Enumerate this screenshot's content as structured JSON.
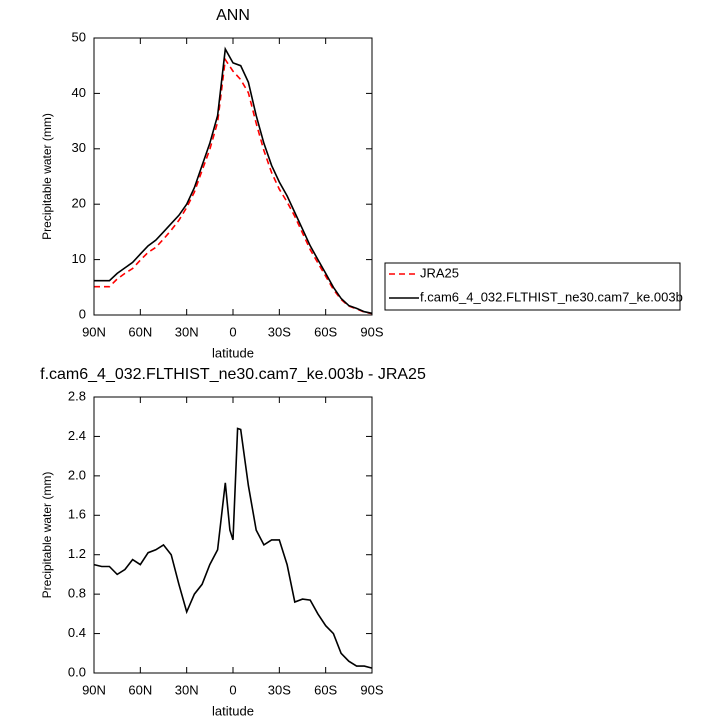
{
  "chart_data": [
    {
      "type": "line",
      "title": "ANN",
      "xlabel": "latitude",
      "ylabel": "Precipitable water (mm)",
      "x": [
        90,
        85,
        80,
        75,
        70,
        65,
        60,
        55,
        50,
        45,
        40,
        35,
        30,
        25,
        20,
        15,
        10,
        5,
        0,
        -5,
        -10,
        -15,
        -20,
        -25,
        -30,
        -35,
        -40,
        -45,
        -50,
        -55,
        -60,
        -65,
        -70,
        -75,
        -80,
        -85,
        -90
      ],
      "series": [
        {
          "name": "JRA25",
          "color": "#ff0000",
          "line_style": "dashed",
          "values": [
            5.1,
            5.1,
            5.1,
            6.5,
            7.5,
            8.4,
            9.9,
            11.3,
            12.2,
            13.7,
            15.3,
            17.1,
            19.4,
            22.2,
            26.1,
            29.9,
            34.8,
            46.1,
            44,
            42.5,
            40.1,
            34.6,
            29.7,
            25.7,
            22.7,
            20.4,
            17.8,
            14.8,
            11.8,
            9.4,
            7.0,
            4.6,
            2.8,
            1.6,
            1.1,
            0.5,
            0.25
          ]
        },
        {
          "name": "f.cam6_4_032.FLTHIST_ne30.cam7_ke.003b",
          "color": "#000000",
          "line_style": "solid",
          "values": [
            6.2,
            6.2,
            6.2,
            7.5,
            8.5,
            9.5,
            11,
            12.5,
            13.5,
            15,
            16.5,
            18,
            20,
            23,
            27,
            31,
            36,
            48,
            45.5,
            45,
            42,
            36,
            31,
            27,
            24,
            21.5,
            18.5,
            15.5,
            12.5,
            10,
            7.5,
            5,
            3,
            1.7,
            1.2,
            0.6,
            0.3
          ]
        }
      ],
      "xlim": [
        90,
        -90
      ],
      "xticks": [
        {
          "value": 90,
          "label": "90N"
        },
        {
          "value": 60,
          "label": "60N"
        },
        {
          "value": 30,
          "label": "30N"
        },
        0,
        {
          "value": -30,
          "label": "30S"
        },
        {
          "value": -60,
          "label": "60S"
        },
        {
          "value": -90,
          "label": "90S"
        }
      ],
      "ylim": [
        0,
        50
      ],
      "yticks": [
        0,
        10,
        20,
        30,
        40,
        50
      ],
      "legend": "right"
    },
    {
      "type": "line",
      "title": "f.cam6_4_032.FLTHIST_ne30.cam7_ke.003b - JRA25",
      "xlabel": "latitude",
      "ylabel": "Precipitable water (mm)",
      "x": [
        90,
        85,
        80,
        75,
        70,
        65,
        60,
        55,
        50,
        45,
        40,
        35,
        30,
        25,
        20,
        15,
        10,
        5,
        2,
        0,
        -3,
        -5,
        -10,
        -15,
        -20,
        -25,
        -30,
        -35,
        -40,
        -45,
        -50,
        -55,
        -60,
        -65,
        -70,
        -75,
        -80,
        -85,
        -90
      ],
      "values": [
        1.1,
        1.08,
        1.08,
        1.0,
        1.05,
        1.15,
        1.1,
        1.22,
        1.25,
        1.3,
        1.2,
        0.9,
        0.62,
        0.8,
        0.9,
        1.1,
        1.25,
        1.93,
        1.45,
        1.35,
        2.48,
        2.47,
        1.9,
        1.45,
        1.3,
        1.35,
        1.35,
        1.1,
        0.72,
        0.75,
        0.74,
        0.6,
        0.48,
        0.4,
        0.2,
        0.12,
        0.07,
        0.07,
        0.05
      ],
      "color": "#000000",
      "xlim": [
        90,
        -90
      ],
      "xticks": [
        {
          "value": 90,
          "label": "90N"
        },
        {
          "value": 60,
          "label": "60N"
        },
        {
          "value": 30,
          "label": "30N"
        },
        0,
        {
          "value": -30,
          "label": "30S"
        },
        {
          "value": -60,
          "label": "60S"
        },
        {
          "value": -90,
          "label": "90S"
        }
      ],
      "ylim": [
        0,
        2.8
      ],
      "yticks": [
        {
          "value": 0,
          "label": "0.0"
        },
        0.4,
        0.8,
        1.2,
        1.6,
        {
          "value": 2,
          "label": "2.0"
        },
        2.4,
        2.8
      ]
    }
  ]
}
